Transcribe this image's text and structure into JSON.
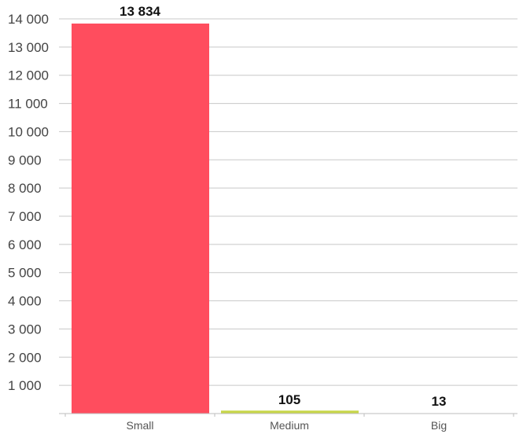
{
  "chart_data": {
    "type": "bar",
    "categories": [
      "Small",
      "Medium",
      "Big"
    ],
    "values": [
      13834,
      105,
      13
    ],
    "value_labels": [
      "13 834",
      "105",
      "13"
    ],
    "bar_colors": [
      "#ff4d5e",
      "#c8d64a",
      "#ffffff"
    ],
    "ylim": [
      0,
      14000
    ],
    "yticks": [
      1000,
      2000,
      3000,
      4000,
      5000,
      6000,
      7000,
      8000,
      9000,
      10000,
      11000,
      12000,
      13000,
      14000
    ],
    "ytick_labels": [
      "1 000",
      "2 000",
      "3 000",
      "4 000",
      "5 000",
      "6 000",
      "7 000",
      "8 000",
      "9 000",
      "10 000",
      "11 000",
      "12 000",
      "13 000",
      "14 000"
    ],
    "grid": true,
    "title": "",
    "xlabel": "",
    "ylabel": ""
  }
}
